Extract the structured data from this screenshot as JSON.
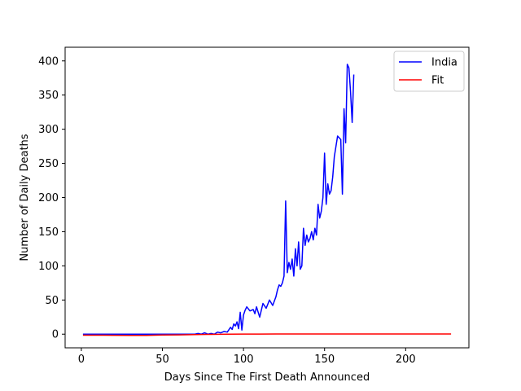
{
  "chart_data": {
    "type": "line",
    "xlabel": "Days Since The First Death Announced",
    "ylabel": "Number of Daily Deaths",
    "xlim": [
      -10,
      239
    ],
    "ylim": [
      -20,
      420
    ],
    "xticks": [
      0,
      50,
      100,
      150,
      200
    ],
    "yticks": [
      0,
      50,
      100,
      150,
      200,
      250,
      300,
      350,
      400
    ],
    "grid": false,
    "legend_position": "top-right",
    "series": [
      {
        "name": "India",
        "color": "#0000ff",
        "x": [
          1,
          10,
          20,
          30,
          40,
          50,
          60,
          70,
          72,
          74,
          76,
          78,
          80,
          82,
          84,
          86,
          88,
          90,
          92,
          93,
          94,
          95,
          96,
          97,
          98,
          99,
          100,
          101,
          102,
          104,
          106,
          107,
          108,
          110,
          112,
          114,
          116,
          118,
          120,
          121,
          122,
          123,
          124,
          125,
          126,
          127,
          128,
          129,
          130,
          131,
          132,
          133,
          134,
          135,
          136,
          137,
          138,
          139,
          140,
          141,
          142,
          143,
          144,
          145,
          146,
          147,
          148,
          149,
          150,
          151,
          152,
          153,
          154,
          155,
          156,
          158,
          160,
          161,
          162,
          163,
          164,
          165,
          166,
          167,
          168
        ],
        "y": [
          0,
          0,
          0,
          0,
          0,
          0,
          0,
          0,
          1,
          0,
          2,
          0,
          1,
          0,
          3,
          2,
          4,
          3,
          10,
          7,
          15,
          12,
          18,
          8,
          32,
          6,
          28,
          35,
          40,
          34,
          36,
          30,
          40,
          25,
          45,
          38,
          50,
          42,
          55,
          65,
          72,
          70,
          75,
          85,
          195,
          90,
          105,
          95,
          110,
          85,
          125,
          100,
          135,
          95,
          100,
          155,
          130,
          145,
          135,
          140,
          150,
          138,
          155,
          145,
          190,
          170,
          180,
          200,
          265,
          190,
          220,
          205,
          210,
          230,
          260,
          290,
          285,
          205,
          330,
          280,
          395,
          390,
          355,
          310,
          380
        ]
      },
      {
        "name": "Fit",
        "color": "#ff0000",
        "x": [
          1,
          10,
          20,
          30,
          40,
          50,
          60,
          70,
          80,
          90,
          100,
          110,
          120,
          130,
          140,
          150,
          160,
          170,
          180,
          190,
          200,
          210,
          220,
          228
        ],
        "y": [
          -1.5,
          -1.5,
          -1.6,
          -1.8,
          -1.7,
          -1.3,
          -1,
          -0.6,
          -0.3,
          0,
          0.1,
          0.2,
          0.3,
          0.3,
          0.3,
          0.3,
          0.3,
          0.3,
          0.3,
          0.3,
          0.3,
          0.3,
          0.3,
          0.3
        ]
      }
    ]
  }
}
